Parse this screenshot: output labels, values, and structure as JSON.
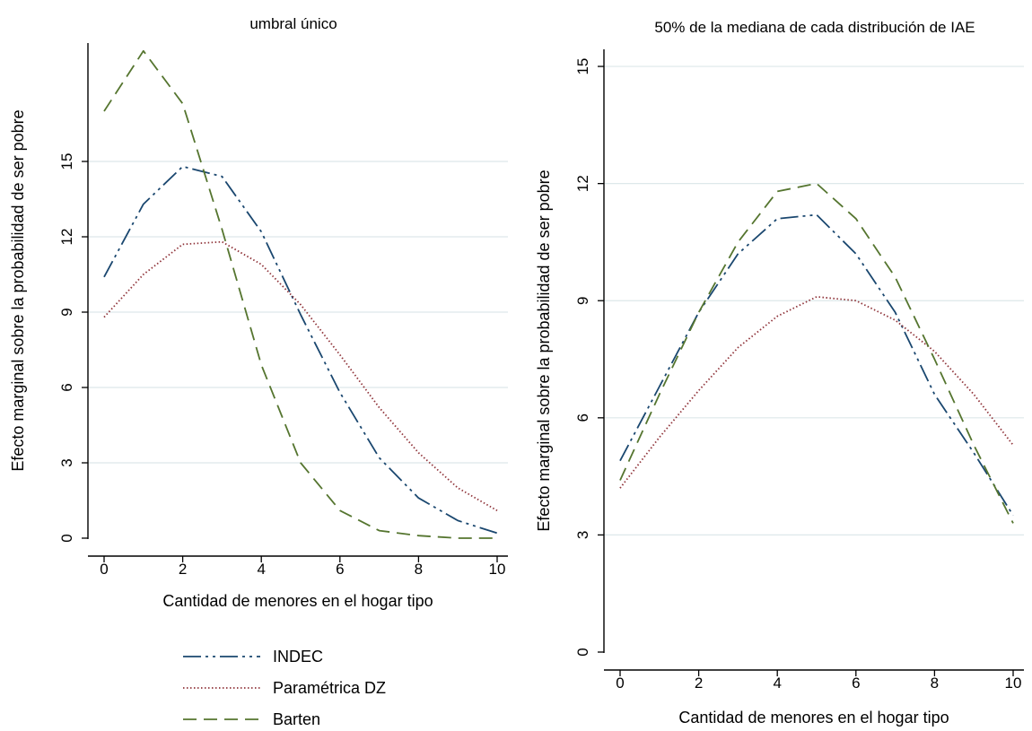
{
  "colors": {
    "indec": "#1a476f",
    "parametrica": "#90353b",
    "barten": "#55752f",
    "grid": "#dde8ea",
    "axis": "#000000"
  },
  "legend": {
    "items": [
      {
        "label": "INDEC",
        "series": 0
      },
      {
        "label": "Paramétrica DZ",
        "series": 1
      },
      {
        "label": "Barten",
        "series": 2
      }
    ]
  },
  "chart_data": [
    {
      "type": "line",
      "title": "umbral único",
      "xlabel": "Cantidad de menores en el hogar tipo",
      "ylabel": "Efecto marginal sobre la probabilidad de ser pobre",
      "x": [
        0,
        1,
        2,
        3,
        4,
        5,
        6,
        7,
        8,
        9,
        10
      ],
      "xticks": [
        0,
        2,
        4,
        6,
        8,
        10
      ],
      "yticks": [
        0,
        3,
        6,
        9,
        12,
        15
      ],
      "xlim": [
        0,
        10
      ],
      "ylim": [
        0,
        19.5
      ],
      "grid": true,
      "series": [
        {
          "name": "INDEC",
          "color": "#1a476f",
          "dash": "20 5 3 5 3 5",
          "values": [
            10.4,
            13.3,
            14.8,
            14.4,
            12.2,
            8.9,
            5.8,
            3.2,
            1.6,
            0.7,
            0.2
          ]
        },
        {
          "name": "Paramétrica DZ",
          "color": "#90353b",
          "dash": "1.5 2.5",
          "values": [
            8.8,
            10.5,
            11.7,
            11.8,
            10.9,
            9.3,
            7.3,
            5.2,
            3.4,
            2.0,
            1.1
          ]
        },
        {
          "name": "Barten",
          "color": "#55752f",
          "dash": "15 8",
          "values": [
            17.0,
            19.4,
            17.3,
            12.3,
            6.9,
            3.0,
            1.1,
            0.3,
            0.1,
            0.0,
            0.0
          ]
        }
      ]
    },
    {
      "type": "line",
      "title": "50% de la mediana de cada distribución de IAE",
      "xlabel": "Cantidad de menores en el hogar tipo",
      "ylabel": "Efecto marginal sobre la probabilidad de ser pobre",
      "x": [
        0,
        1,
        2,
        3,
        4,
        5,
        6,
        7,
        8,
        9,
        10
      ],
      "xticks": [
        0,
        2,
        4,
        6,
        8,
        10
      ],
      "yticks": [
        0,
        3,
        6,
        9,
        12,
        15
      ],
      "xlim": [
        0,
        10
      ],
      "ylim": [
        0,
        15.3
      ],
      "grid": true,
      "series": [
        {
          "name": "INDEC",
          "color": "#1a476f",
          "dash": "20 5 3 5 3 5",
          "values": [
            4.9,
            6.8,
            8.7,
            10.2,
            11.1,
            11.2,
            10.2,
            8.7,
            6.6,
            5.1,
            3.5
          ]
        },
        {
          "name": "Paramétrica DZ",
          "color": "#90353b",
          "dash": "1.5 2.5",
          "values": [
            4.2,
            5.5,
            6.7,
            7.8,
            8.6,
            9.1,
            9.0,
            8.5,
            7.7,
            6.6,
            5.3
          ]
        },
        {
          "name": "Barten",
          "color": "#55752f",
          "dash": "15 8",
          "values": [
            4.4,
            6.6,
            8.7,
            10.5,
            11.8,
            12.0,
            11.1,
            9.6,
            7.5,
            5.3,
            3.3
          ]
        }
      ]
    }
  ]
}
